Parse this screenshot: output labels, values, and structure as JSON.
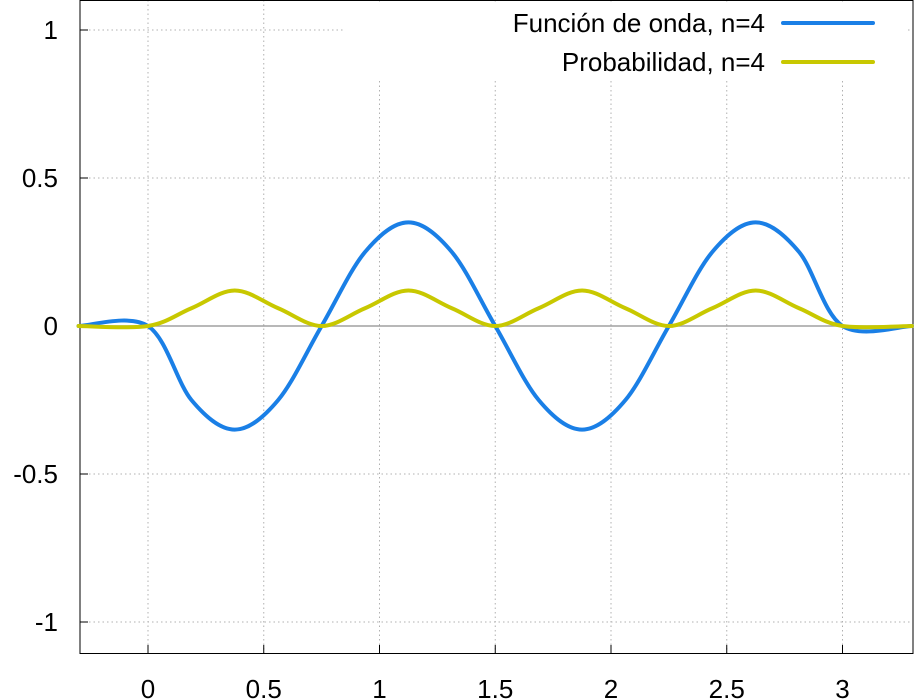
{
  "chart_data": {
    "type": "line",
    "title": "",
    "xlabel": "",
    "ylabel": "",
    "xlim": [
      -0.3,
      3.3
    ],
    "ylim": [
      -1.1,
      1.1
    ],
    "grid": true,
    "legend_position": "top-right",
    "xticks": [
      0,
      0.5,
      1,
      1.5,
      2,
      2.5,
      3
    ],
    "xtick_labels": [
      "0",
      "0.5",
      "1",
      "1.5",
      "2",
      "2.5",
      "3"
    ],
    "yticks": [
      -1,
      -0.5,
      0,
      0.5,
      1
    ],
    "ytick_labels": [
      "-1",
      "-0.5",
      "0",
      "0.5",
      "1"
    ],
    "x": [
      -0.3,
      0,
      0.1875,
      0.375,
      0.5625,
      0.75,
      0.9375,
      1.125,
      1.3125,
      1.5,
      1.6875,
      1.875,
      2.0625,
      2.25,
      2.4375,
      2.625,
      2.8125,
      3.0,
      3.3
    ],
    "series": [
      {
        "name": "Función de onda, n=4",
        "color": "#1a7fe6",
        "values": [
          0,
          0,
          -0.25,
          -0.35,
          -0.25,
          0,
          0.25,
          0.35,
          0.25,
          0,
          -0.25,
          -0.35,
          -0.25,
          0,
          0.25,
          0.35,
          0.25,
          0,
          0
        ]
      },
      {
        "name": "Probabilidad, n=4",
        "color": "#c8c800",
        "values": [
          0,
          0,
          0.06,
          0.12,
          0.06,
          0,
          0.06,
          0.12,
          0.06,
          0,
          0.06,
          0.12,
          0.06,
          0,
          0.06,
          0.12,
          0.06,
          0,
          0
        ]
      }
    ]
  }
}
